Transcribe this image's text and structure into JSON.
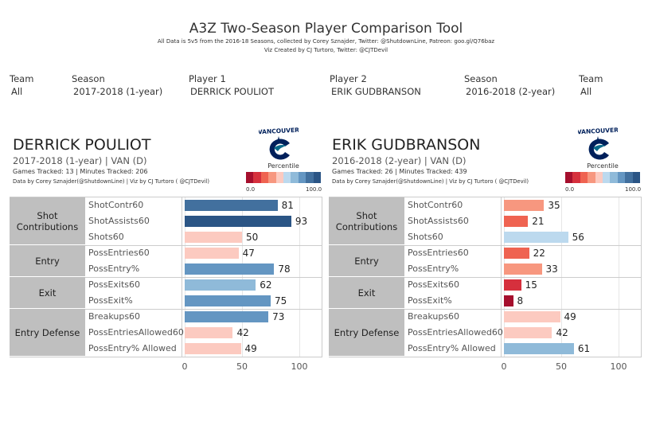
{
  "header": {
    "title": "A3Z Two-Season Player Comparison Tool",
    "subtitle1": "All Data is 5v5 from the 2016-18 Seasons, collected by Corey Sznajder, Twitter: @ShutdownLine, Patreon: goo.gl/Q76baz",
    "subtitle2": "Viz Created by CJ Turtoro, Twitter: @CJTDevil"
  },
  "filters": [
    {
      "label": "Team",
      "value": "All"
    },
    {
      "label": "Season",
      "value": "2017-2018 (1-year)"
    },
    {
      "label": "Player 1",
      "value": "DERRICK POULIOT"
    },
    {
      "label": "Player 2",
      "value": "ERIK GUDBRANSON"
    },
    {
      "label": "Season",
      "value": "2016-2018 (2-year)"
    },
    {
      "label": "Team",
      "value": "All"
    }
  ],
  "legend": {
    "title": "Percentile",
    "min": "0.0",
    "max": "100.0",
    "colors": [
      "#a50f2d",
      "#d6303d",
      "#ef6351",
      "#f7977f",
      "#fccac0",
      "#bcd9ee",
      "#8fbad9",
      "#6496c2",
      "#42709e",
      "#2b5585"
    ]
  },
  "groups": [
    "Shot Contributions",
    "Entry",
    "Exit",
    "Entry Defense"
  ],
  "metrics": [
    "ShotContr60",
    "ShotAssists60",
    "Shots60",
    "PossEntries60",
    "PossEntry%",
    "PossExits60",
    "PossExit%",
    "Breakups60",
    "PossEntriesAllowed60",
    "PossEntry% Allowed"
  ],
  "axis_ticks": [
    "0",
    "50",
    "100"
  ],
  "players": [
    {
      "name": "DERRICK POULIOT",
      "season_team": "2017-2018 (1-year) | VAN (D)",
      "games": "Games Tracked: 13  | Minutes Tracked: 206",
      "credit": "Data by Corey Sznajder(@ShutdownLine) | Viz by CJ Turtoro ( @CJTDevil)",
      "logo_text": "VANCOUVER",
      "values": [
        81,
        93,
        50,
        47,
        78,
        62,
        75,
        73,
        42,
        49
      ],
      "colors": [
        "#42709e",
        "#2b5585",
        "#fccac0",
        "#fccac0",
        "#6496c2",
        "#8fbad9",
        "#6496c2",
        "#6496c2",
        "#fccac0",
        "#fccac0"
      ]
    },
    {
      "name": "ERIK GUDBRANSON",
      "season_team": "2016-2018 (2-year) | VAN (D)",
      "games": "Games Tracked: 26  | Minutes Tracked: 439",
      "credit": "Data by Corey Sznajder(@ShutdownLine) | Viz by CJ Turtoro ( @CJTDevil)",
      "logo_text": "VANCOUVER",
      "values": [
        35,
        21,
        56,
        22,
        33,
        15,
        8,
        49,
        42,
        61
      ],
      "colors": [
        "#f7977f",
        "#ef6351",
        "#bcd9ee",
        "#ef6351",
        "#f7977f",
        "#d6303d",
        "#a50f2d",
        "#fccac0",
        "#fccac0",
        "#8fbad9"
      ]
    }
  ]
}
